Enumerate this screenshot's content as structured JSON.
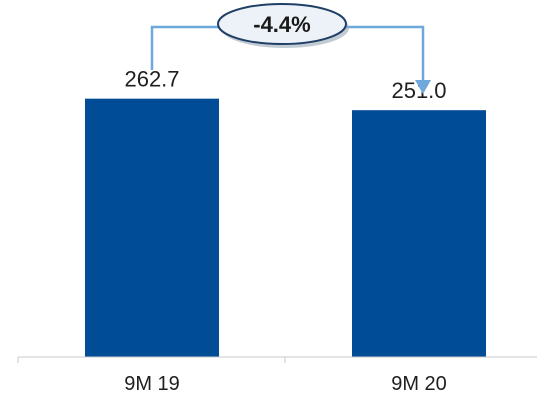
{
  "chart_data": {
    "type": "bar",
    "categories": [
      "9M 19",
      "9M 20"
    ],
    "values": [
      262.7,
      251.0
    ],
    "value_labels": [
      "262.7",
      "251.0"
    ],
    "change_label": "-4.4%",
    "title": "",
    "xlabel": "",
    "ylabel": "",
    "ylim": [
      0,
      300
    ],
    "grid": false,
    "legend": "none"
  },
  "colors": {
    "bar": "#004C97",
    "connector": "#6FA8DC",
    "axis": "#c8c8c8",
    "badge_fill": "#ECF2F8",
    "badge_stroke": "#1F3F66"
  }
}
